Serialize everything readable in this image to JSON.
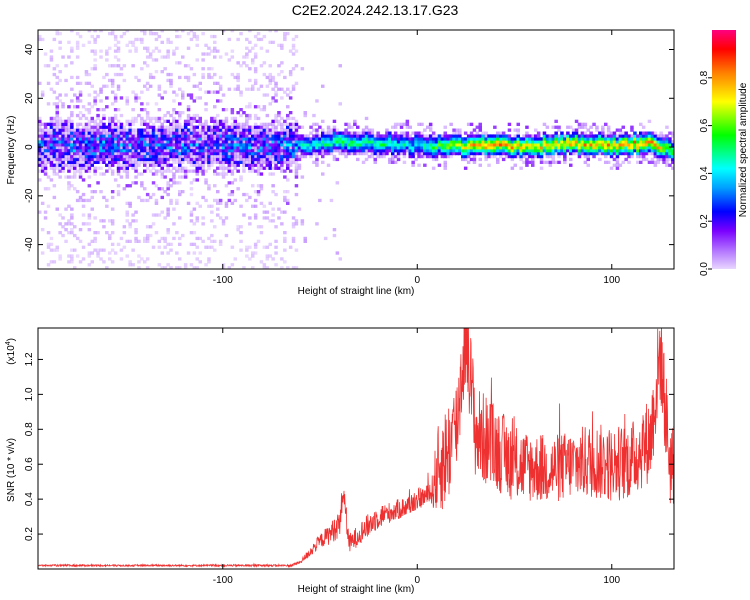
{
  "title": "C2E2.2024.242.13.17.G23",
  "chart_data": [
    {
      "type": "heatmap",
      "title": "C2E2.2024.242.13.17.G23",
      "xlabel": "Height of straight line (km)",
      "ylabel": "Frequency (Hz)",
      "xlim": [
        -195,
        132
      ],
      "ylim": [
        -50,
        48
      ],
      "xticks": [
        -100,
        0,
        100
      ],
      "xtick_labels": [
        "-100",
        "0",
        "100"
      ],
      "yticks": [
        -40,
        -20,
        0,
        20,
        40
      ],
      "ytick_labels": [
        "-40",
        "-20",
        "0",
        "20",
        "40"
      ],
      "colorbar": {
        "label": "Normalized spectral amplitude",
        "range": [
          0,
          1
        ],
        "ticks": [
          0.0,
          0.2,
          0.4,
          0.6,
          0.8
        ],
        "tick_labels": [
          "0.0",
          "0.2",
          "0.4",
          "0.6",
          "0.8"
        ],
        "colors": [
          "#e0c8ff",
          "#8a2be2",
          "#0000ff",
          "#00ffff",
          "#00ff00",
          "#ffff00",
          "#ff8000",
          "#ff0000",
          "#ff0080"
        ]
      },
      "ridge": {
        "x": [
          -195,
          -150,
          -100,
          -65,
          -60,
          -40,
          -20,
          0,
          20,
          40,
          60,
          80,
          100,
          120,
          132
        ],
        "frequency": [
          0,
          0,
          0,
          0,
          0,
          2,
          1,
          0,
          0,
          0,
          0,
          1,
          0,
          1,
          -2
        ],
        "amplitude": [
          0.3,
          0.3,
          0.3,
          0.32,
          0.45,
          0.55,
          0.5,
          0.45,
          0.75,
          0.85,
          0.75,
          0.8,
          0.8,
          0.85,
          0.6
        ]
      },
      "grid": false
    },
    {
      "type": "line",
      "xlabel": "Height of straight line (km)",
      "ylabel": "SNR (10 * v/v)",
      "y_multiplier_label": "(x10",
      "y_multiplier_exponent": "4",
      "y_multiplier_close": ")",
      "xlim": [
        -195,
        132
      ],
      "ylim": [
        0,
        1.38
      ],
      "xticks": [
        -100,
        0,
        100
      ],
      "xtick_labels": [
        "-100",
        "0",
        "100"
      ],
      "yticks": [
        0.2,
        0.4,
        0.6,
        0.8,
        1.0,
        1.2
      ],
      "ytick_labels": [
        "0.2",
        "0.4",
        "0.6",
        "0.8",
        "1.0",
        "1.2"
      ],
      "series": [
        {
          "color": "#ee3030",
          "x": [
            -195,
            -150,
            -100,
            -65,
            -60,
            -55,
            -50,
            -45,
            -40,
            -38,
            -35,
            -30,
            -25,
            -20,
            -15,
            -10,
            -5,
            0,
            5,
            8,
            10,
            15,
            20,
            25,
            30,
            40,
            50,
            60,
            70,
            80,
            90,
            100,
            110,
            120,
            125,
            130,
            132
          ],
          "y": [
            0.02,
            0.02,
            0.02,
            0.02,
            0.04,
            0.1,
            0.16,
            0.2,
            0.26,
            0.45,
            0.14,
            0.2,
            0.25,
            0.3,
            0.32,
            0.34,
            0.36,
            0.4,
            0.42,
            0.45,
            0.55,
            0.65,
            0.8,
            1.37,
            0.78,
            0.7,
            0.6,
            0.58,
            0.57,
            0.6,
            0.62,
            0.6,
            0.62,
            0.75,
            1.25,
            0.6,
            0.6
          ],
          "fluctuation": [
            0.005,
            0.005,
            0.005,
            0.006,
            0.01,
            0.03,
            0.04,
            0.06,
            0.08,
            0.08,
            0.06,
            0.06,
            0.07,
            0.07,
            0.06,
            0.06,
            0.06,
            0.06,
            0.06,
            0.1,
            0.25,
            0.3,
            0.3,
            0.3,
            0.28,
            0.25,
            0.22,
            0.2,
            0.2,
            0.2,
            0.22,
            0.22,
            0.22,
            0.25,
            0.3,
            0.25,
            0.25
          ]
        }
      ],
      "grid": false
    }
  ]
}
